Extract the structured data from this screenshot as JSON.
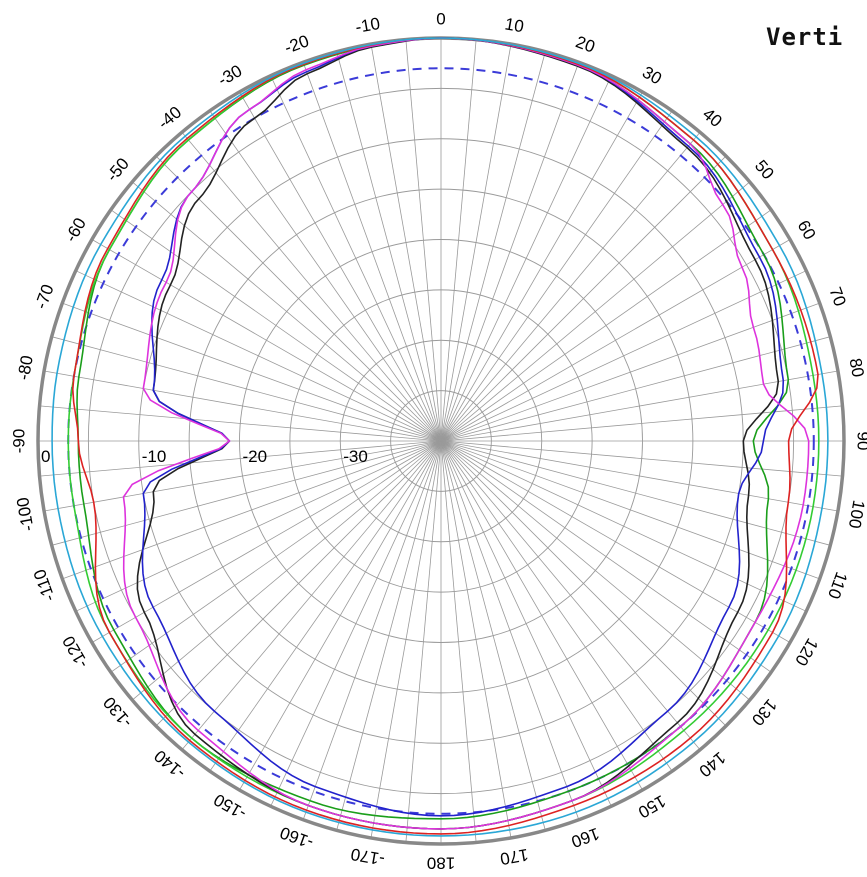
{
  "chart_data": {
    "type": "polar-line",
    "title": "Verti",
    "radial_ticks": [
      "0",
      "-10",
      "-20",
      "-30"
    ],
    "radial_range": [
      -40,
      0
    ],
    "angle_tick_labels": [
      {
        "deg": 0,
        "label": "0"
      },
      {
        "deg": 10,
        "label": "10"
      },
      {
        "deg": 20,
        "label": "20"
      },
      {
        "deg": 30,
        "label": "30"
      },
      {
        "deg": 40,
        "label": "40"
      },
      {
        "deg": 50,
        "label": "50"
      },
      {
        "deg": 60,
        "label": "60"
      },
      {
        "deg": 70,
        "label": "70"
      },
      {
        "deg": 80,
        "label": "80"
      },
      {
        "deg": 90,
        "label": "90"
      },
      {
        "deg": 100,
        "label": "100"
      },
      {
        "deg": 110,
        "label": "110"
      },
      {
        "deg": 120,
        "label": "120"
      },
      {
        "deg": 130,
        "label": "130"
      },
      {
        "deg": 140,
        "label": "140"
      },
      {
        "deg": 150,
        "label": "150"
      },
      {
        "deg": 160,
        "label": "160"
      },
      {
        "deg": 170,
        "label": "170"
      },
      {
        "deg": 180,
        "label": "180"
      },
      {
        "deg": -10,
        "label": "-10"
      },
      {
        "deg": -20,
        "label": "-20"
      },
      {
        "deg": -30,
        "label": "-30"
      },
      {
        "deg": -40,
        "label": "-40"
      },
      {
        "deg": -50,
        "label": "-50"
      },
      {
        "deg": -60,
        "label": "-60"
      },
      {
        "deg": -70,
        "label": "-70"
      },
      {
        "deg": -80,
        "label": "-80"
      },
      {
        "deg": -90,
        "label": "-90"
      },
      {
        "deg": -100,
        "label": "-100"
      },
      {
        "deg": -110,
        "label": "-110"
      },
      {
        "deg": -120,
        "label": "-120"
      },
      {
        "deg": -130,
        "label": "-130"
      },
      {
        "deg": -140,
        "label": "-140"
      },
      {
        "deg": -150,
        "label": "-150"
      },
      {
        "deg": -160,
        "label": "-160"
      },
      {
        "deg": -170,
        "label": "-170"
      }
    ],
    "reference_dashed": {
      "color": "#3b3bd8",
      "value": -3
    },
    "series": [
      {
        "color": "#1a9e1a",
        "dash": false,
        "points": [
          [
            0,
            0
          ],
          [
            20,
            -0.3
          ],
          [
            40,
            -1.5
          ],
          [
            60,
            -3
          ],
          [
            80,
            -5
          ],
          [
            90,
            -9
          ],
          [
            100,
            -7
          ],
          [
            120,
            -4
          ],
          [
            140,
            -3
          ],
          [
            160,
            -3
          ],
          [
            180,
            -2.5
          ],
          [
            -160,
            -2
          ],
          [
            -140,
            -1.5
          ],
          [
            -120,
            -2.5
          ],
          [
            -100,
            -4
          ],
          [
            -90,
            -4
          ],
          [
            -80,
            -3.5
          ],
          [
            -60,
            -2
          ],
          [
            -40,
            -1
          ],
          [
            -20,
            -0.3
          ]
        ]
      },
      {
        "color": "#33cc33",
        "dash": false,
        "points": [
          [
            0,
            0
          ],
          [
            20,
            -0.2
          ],
          [
            40,
            -1
          ],
          [
            60,
            -2
          ],
          [
            80,
            -2.5
          ],
          [
            90,
            -2.5
          ],
          [
            100,
            -2.5
          ],
          [
            120,
            -2.5
          ],
          [
            140,
            -2.5
          ],
          [
            160,
            -2
          ],
          [
            180,
            -1.5
          ],
          [
            -160,
            -1.5
          ],
          [
            -140,
            -1.5
          ],
          [
            -120,
            -2
          ],
          [
            -100,
            -3
          ],
          [
            -90,
            -3
          ],
          [
            -80,
            -3
          ],
          [
            -60,
            -2
          ],
          [
            -40,
            -1
          ],
          [
            -20,
            -0.2
          ]
        ]
      },
      {
        "color": "#222222",
        "dash": false,
        "points": [
          [
            0,
            0
          ],
          [
            20,
            -0.4
          ],
          [
            40,
            -2
          ],
          [
            60,
            -4
          ],
          [
            80,
            -6
          ],
          [
            90,
            -10
          ],
          [
            100,
            -9
          ],
          [
            120,
            -6
          ],
          [
            140,
            -3.5
          ],
          [
            160,
            -2
          ],
          [
            180,
            -1.5
          ],
          [
            -160,
            -1.5
          ],
          [
            -140,
            -2
          ],
          [
            -120,
            -6
          ],
          [
            -100,
            -11
          ],
          [
            -90,
            -19
          ],
          [
            -80,
            -11
          ],
          [
            -60,
            -9
          ],
          [
            -45,
            -6
          ],
          [
            -30,
            -3
          ],
          [
            -20,
            -1.2
          ],
          [
            -10,
            -0.3
          ]
        ]
      },
      {
        "color": "#2222cc",
        "dash": false,
        "points": [
          [
            0,
            0
          ],
          [
            20,
            -0.3
          ],
          [
            40,
            -1.8
          ],
          [
            60,
            -3.5
          ],
          [
            80,
            -5.5
          ],
          [
            90,
            -8
          ],
          [
            100,
            -10
          ],
          [
            120,
            -7
          ],
          [
            140,
            -5
          ],
          [
            160,
            -3.5
          ],
          [
            180,
            -2.8
          ],
          [
            -160,
            -3.5
          ],
          [
            -140,
            -5
          ],
          [
            -120,
            -7
          ],
          [
            -100,
            -10
          ],
          [
            -90,
            -19
          ],
          [
            -80,
            -11
          ],
          [
            -60,
            -8
          ],
          [
            -45,
            -5
          ],
          [
            -30,
            -2
          ],
          [
            -20,
            -1
          ],
          [
            -10,
            -0.2
          ]
        ]
      },
      {
        "color": "#dd33dd",
        "dash": false,
        "points": [
          [
            0,
            0
          ],
          [
            20,
            -0.3
          ],
          [
            40,
            -1.5
          ],
          [
            50,
            -3.5
          ],
          [
            60,
            -5.5
          ],
          [
            70,
            -7
          ],
          [
            80,
            -7.5
          ],
          [
            90,
            -3.5
          ],
          [
            100,
            -3.5
          ],
          [
            120,
            -4
          ],
          [
            140,
            -3
          ],
          [
            160,
            -2
          ],
          [
            180,
            -1.5
          ],
          [
            -160,
            -1.5
          ],
          [
            -140,
            -2.5
          ],
          [
            -120,
            -5
          ],
          [
            -100,
            -8
          ],
          [
            -90,
            -19
          ],
          [
            -80,
            -10
          ],
          [
            -60,
            -8.5
          ],
          [
            -45,
            -5
          ],
          [
            -30,
            -2
          ],
          [
            -20,
            -0.8
          ],
          [
            -10,
            -0.2
          ]
        ]
      },
      {
        "color": "#dd2222",
        "dash": false,
        "points": [
          [
            0,
            0
          ],
          [
            20,
            -0.2
          ],
          [
            40,
            -1
          ],
          [
            60,
            -2
          ],
          [
            80,
            -2
          ],
          [
            90,
            -5.5
          ],
          [
            100,
            -5
          ],
          [
            120,
            -2
          ],
          [
            140,
            -1.5
          ],
          [
            160,
            -1.5
          ],
          [
            180,
            -1
          ],
          [
            -160,
            -1
          ],
          [
            -140,
            -1.2
          ],
          [
            -120,
            -2
          ],
          [
            -100,
            -5
          ],
          [
            -90,
            -4
          ],
          [
            -80,
            -3
          ],
          [
            -60,
            -1.8
          ],
          [
            -40,
            -0.8
          ],
          [
            -20,
            -0.2
          ]
        ]
      },
      {
        "color": "#2aa7d6",
        "dash": false,
        "points": [
          [
            0,
            0
          ],
          [
            20,
            -0.1
          ],
          [
            40,
            -0.6
          ],
          [
            60,
            -1.2
          ],
          [
            80,
            -1.6
          ],
          [
            90,
            -1.6
          ],
          [
            100,
            -1.6
          ],
          [
            120,
            -1.3
          ],
          [
            140,
            -1
          ],
          [
            160,
            -0.8
          ],
          [
            180,
            -0.8
          ],
          [
            -160,
            -0.8
          ],
          [
            -140,
            -1
          ],
          [
            -120,
            -1.2
          ],
          [
            -100,
            -1.4
          ],
          [
            -90,
            -1.4
          ],
          [
            -80,
            -1.3
          ],
          [
            -60,
            -1
          ],
          [
            -40,
            -0.5
          ],
          [
            -20,
            -0.1
          ]
        ]
      }
    ]
  }
}
